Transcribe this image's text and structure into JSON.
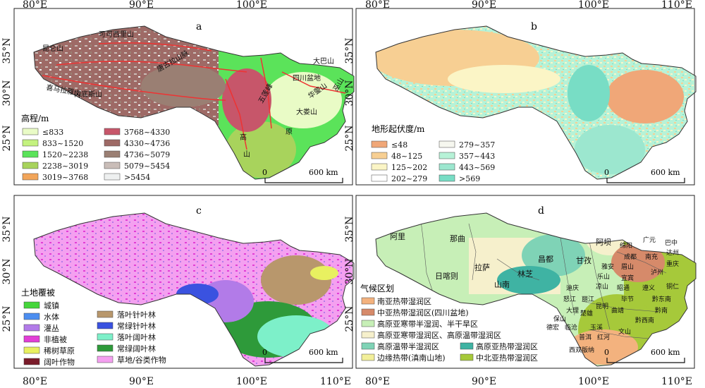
{
  "axes": {
    "x_ticks": [
      "80°E",
      "90°E",
      "100°E",
      "110°E"
    ],
    "y_ticks": [
      "35°N",
      "30°N",
      "25°N"
    ]
  },
  "panels": {
    "a": {
      "letter": "a",
      "legend_title": "高程/m",
      "legend": [
        {
          "label": "≤833",
          "color": "#e9fbc6"
        },
        {
          "label": "833~1520",
          "color": "#c4f27f"
        },
        {
          "label": "1520~2238",
          "color": "#5be35a"
        },
        {
          "label": "2238~3019",
          "color": "#a8d35c"
        },
        {
          "label": "3019~3768",
          "color": "#f2a55a"
        },
        {
          "label": "3768~4330",
          "color": "#c7566a"
        },
        {
          "label": "4330~4736",
          "color": "#9e6a66"
        },
        {
          "label": "4736~5079",
          "color": "#9a7f73"
        },
        {
          "label": "5079~5454",
          "color": "#c9bdb8"
        },
        {
          "label": ">5454",
          "color": "#eef0f0"
        }
      ],
      "place_labels": [
        "可可西里山",
        "昆仑山",
        "唐古拉山脉",
        "冈底斯山",
        "喜马拉雅山",
        "大巴山",
        "四川盆地",
        "华蓥山",
        "巫山",
        "大娄山",
        "五莲峰",
        "原",
        "高",
        "山"
      ],
      "scale_label": "600 km",
      "scale_zero": "0"
    },
    "b": {
      "letter": "b",
      "legend_title": "地形起伏度/m",
      "legend": [
        {
          "label": "≤48",
          "color": "#f0a778"
        },
        {
          "label": "279~357",
          "color": "#f6f7ef"
        },
        {
          "label": "48~125",
          "color": "#f7cf93"
        },
        {
          "label": "357~443",
          "color": "#b7f2d7"
        },
        {
          "label": "125~202",
          "color": "#fbf5c6"
        },
        {
          "label": "443~569",
          "color": "#9ce7cf"
        },
        {
          "label": "202~279",
          "color": "#ffffff"
        },
        {
          "label": ">569",
          "color": "#78ddc5"
        }
      ],
      "scale_label": "600 km",
      "scale_zero": "0"
    },
    "c": {
      "letter": "c",
      "legend_title": "土地覆被",
      "legend": [
        {
          "label": "城镇",
          "color": "#45d63b"
        },
        {
          "label": "落叶针叶林",
          "color": "#b8976c"
        },
        {
          "label": "水体",
          "color": "#4c8ef0"
        },
        {
          "label": "常绿针叶林",
          "color": "#3a52e0"
        },
        {
          "label": "灌丛",
          "color": "#b27be8"
        },
        {
          "label": "落叶阔叶林",
          "color": "#7df0c9"
        },
        {
          "label": "非植被",
          "color": "#e23ed6"
        },
        {
          "label": "常绿阔叶林",
          "color": "#2e9a3a"
        },
        {
          "label": "稀树草原",
          "color": "#e8f060"
        },
        {
          "label": "草地/谷类作物",
          "color": "#f4a0f0"
        },
        {
          "label": "阔叶作物",
          "color": "#7a1b2a"
        }
      ],
      "scale_label": "600 km",
      "scale_zero": "0"
    },
    "d": {
      "letter": "d",
      "legend_title": "气候区划",
      "legend": [
        {
          "label": "南亚热带湿润区",
          "color": "#f3b27e"
        },
        {
          "label": "中亚热带湿润区(四川盆地)",
          "color": "#d68a6a"
        },
        {
          "label": "高原亚寒带半湿润、半干旱区",
          "color": "#c7efb7"
        },
        {
          "label": "高原亚寒带湿润区、高原温带湿润区",
          "color": "#f6f0cc"
        },
        {
          "label": "高原温带半湿润区",
          "color": "#7fd3b6"
        },
        {
          "label": "高原亚热带湿润区",
          "color": "#3fb3a3"
        },
        {
          "label": "边缘热带(滇南山地)",
          "color": "#f2ef9a"
        },
        {
          "label": "中北亚热带湿润区",
          "color": "#a6c93a"
        }
      ],
      "region_labels": [
        "阿里",
        "那曲",
        "日喀则",
        "拉萨",
        "林芝",
        "山南",
        "昌都",
        "甘孜",
        "阿坝",
        "绵阳",
        "广元",
        "巴中",
        "达州",
        "南充",
        "成都",
        "雅安",
        "眉山",
        "乐山",
        "宜宾",
        "泸州",
        "重庆",
        "凉山",
        "昭通",
        "遵义",
        "铜仁",
        "迪庆",
        "怒江",
        "丽江",
        "毕节",
        "黔东南",
        "大理",
        "昆明",
        "曲靖",
        "黔南",
        "保山",
        "楚雄",
        "德宏",
        "临沧",
        "玉溪",
        "黔西南",
        "普洱",
        "红河",
        "文山",
        "西双版纳"
      ],
      "scale_label": "600 km",
      "scale_zero": "0"
    }
  }
}
